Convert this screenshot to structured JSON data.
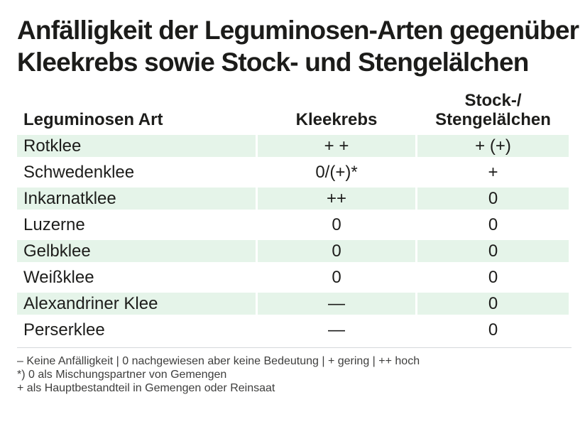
{
  "title": {
    "line1": "Anfälligkeit der Leguminosen-Arten gegenüber",
    "line2": "Kleekrebs sowie Stock- und Stengelälchen"
  },
  "table": {
    "header": {
      "col1": "Leguminosen Art",
      "col2": "Kleekrebs",
      "col3_line1": "Stock-/",
      "col3_line2": "Stengelälchen"
    },
    "rows": [
      [
        "Rotklee",
        "+ +",
        "+ (+)"
      ],
      [
        "Schwedenklee",
        "0/(+)*",
        "+"
      ],
      [
        "Inkarnatklee",
        "++",
        "0"
      ],
      [
        "Luzerne",
        "0",
        "0"
      ],
      [
        "Gelbklee",
        "0",
        "0"
      ],
      [
        "Weißklee",
        "0",
        "0"
      ],
      [
        "Alexandriner Klee",
        "—",
        "0"
      ],
      [
        "Perserklee",
        "—",
        "0"
      ]
    ]
  },
  "footnotes": {
    "line1": "– Keine Anfälligkeit | 0 nachgewiesen aber keine Bedeutung | + gering |  ++ hoch",
    "line2": "*) 0 als Mischungspartner von Gemengen",
    "line3": "+ als Hauptbestandteil in Gemengen oder Reinsaat"
  },
  "colors": {
    "row_highlight": "#e5f4e9",
    "text": "#1c1c1a",
    "footnote_text": "#3e3e3d",
    "divider": "#d5d7da"
  },
  "chart_data": {
    "type": "table",
    "title": "Anfälligkeit der Leguminosen-Arten gegenüber Kleekrebs sowie Stock- und Stengelälchen",
    "columns": [
      "Leguminosen Art",
      "Kleekrebs",
      "Stock-/ Stengelälchen"
    ],
    "rows": [
      {
        "art": "Rotklee",
        "kleekrebs": "+ +",
        "stock_stengelaelchen": "+ (+)"
      },
      {
        "art": "Schwedenklee",
        "kleekrebs": "0/(+)*",
        "stock_stengelaelchen": "+"
      },
      {
        "art": "Inkarnatklee",
        "kleekrebs": "++",
        "stock_stengelaelchen": "0"
      },
      {
        "art": "Luzerne",
        "kleekrebs": "0",
        "stock_stengelaelchen": "0"
      },
      {
        "art": "Gelbklee",
        "kleekrebs": "0",
        "stock_stengelaelchen": "0"
      },
      {
        "art": "Weißklee",
        "kleekrebs": "0",
        "stock_stengelaelchen": "0"
      },
      {
        "art": "Alexandriner Klee",
        "kleekrebs": "—",
        "stock_stengelaelchen": "0"
      },
      {
        "art": "Perserklee",
        "kleekrebs": "—",
        "stock_stengelaelchen": "0"
      }
    ],
    "legend": "– Keine Anfälligkeit | 0 nachgewiesen aber keine Bedeutung | + gering | ++ hoch",
    "notes": [
      "*) 0 als Mischungspartner von Gemengen",
      "+ als Hauptbestandteil in Gemengen oder Reinsaat"
    ]
  }
}
